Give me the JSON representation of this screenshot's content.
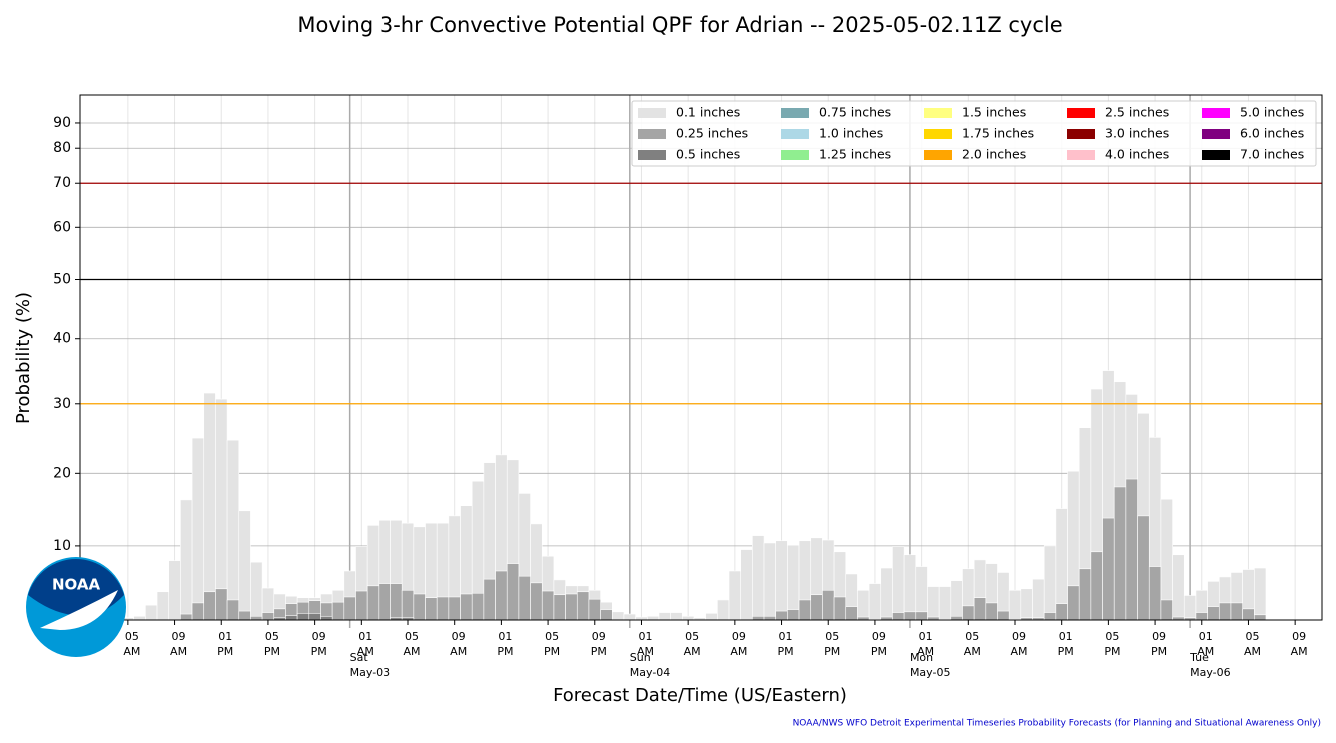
{
  "chart_data": {
    "type": "bar",
    "title": "Moving 3-hr Convective Potential QPF for Adrian -- 2025-05-02.11Z cycle",
    "xlabel": "Forecast Date/Time (US/Eastern)",
    "ylabel": "Probability (%)",
    "footer": "NOAA/NWS WFO Detroit Experimental Timeseries Probability Forecasts (for Planning and Situational Awareness Only)",
    "logo_text": "NOAA",
    "yscale": "sine",
    "grid": true,
    "legend": "upper right",
    "xlim": [
      0.9,
      107.3
    ],
    "ylim": [
      0,
      100
    ],
    "yticks": [
      10,
      20,
      30,
      40,
      50,
      60,
      70,
      80,
      90
    ],
    "xticks": [
      {
        "value": 5,
        "label": "05\nAM"
      },
      {
        "value": 9,
        "label": "09\nAM"
      },
      {
        "value": 13,
        "label": "01\nPM"
      },
      {
        "value": 17,
        "label": "05\nPM"
      },
      {
        "value": 21,
        "label": "09\nPM"
      },
      {
        "value": 25,
        "label": "01\nAM"
      },
      {
        "value": 29,
        "label": "05\nAM"
      },
      {
        "value": 33,
        "label": "09\nAM"
      },
      {
        "value": 37,
        "label": "01\nPM"
      },
      {
        "value": 41,
        "label": "05\nPM"
      },
      {
        "value": 45,
        "label": "09\nPM"
      },
      {
        "value": 49,
        "label": "01\nAM"
      },
      {
        "value": 53,
        "label": "05\nAM"
      },
      {
        "value": 57,
        "label": "09\nAM"
      },
      {
        "value": 61,
        "label": "01\nPM"
      },
      {
        "value": 65,
        "label": "05\nPM"
      },
      {
        "value": 69,
        "label": "09\nPM"
      },
      {
        "value": 73,
        "label": "01\nAM"
      },
      {
        "value": 77,
        "label": "05\nAM"
      },
      {
        "value": 81,
        "label": "09\nAM"
      },
      {
        "value": 85,
        "label": "01\nPM"
      },
      {
        "value": 89,
        "label": "05\nPM"
      },
      {
        "value": 93,
        "label": "09\nPM"
      },
      {
        "value": 97,
        "label": "01\nAM"
      },
      {
        "value": 101,
        "label": "05\nAM"
      },
      {
        "value": 105,
        "label": "09\nAM"
      }
    ],
    "day_labels": [
      {
        "value": 24,
        "label": "Sat\nMay-03"
      },
      {
        "value": 48,
        "label": "Sun\nMay-04"
      },
      {
        "value": 72,
        "label": "Mon\nMay-05"
      },
      {
        "value": 96,
        "label": "Tue\nMay-06"
      }
    ],
    "hlines": [
      {
        "value": 70,
        "color": "#a00000"
      },
      {
        "value": 50,
        "color": "#000000"
      },
      {
        "value": 30,
        "color": "#ffa500"
      }
    ],
    "x": [
      5,
      6,
      7,
      8,
      9,
      10,
      11,
      12,
      13,
      14,
      15,
      16,
      17,
      18,
      19,
      20,
      21,
      22,
      23,
      24,
      25,
      26,
      27,
      28,
      29,
      30,
      31,
      32,
      33,
      34,
      35,
      36,
      37,
      38,
      39,
      40,
      41,
      42,
      43,
      44,
      45,
      46,
      47,
      48,
      49,
      50,
      51,
      52,
      53,
      54,
      55,
      56,
      57,
      58,
      59,
      60,
      61,
      62,
      63,
      64,
      65,
      66,
      67,
      68,
      69,
      70,
      71,
      72,
      73,
      74,
      75,
      76,
      77,
      78,
      79,
      80,
      81,
      82,
      83,
      84,
      85,
      86,
      87,
      88,
      89,
      90,
      91,
      92,
      93,
      94,
      95,
      96,
      97,
      98,
      99,
      100,
      101,
      102
    ],
    "series": [
      {
        "name": "0.1 inches",
        "color": "#e3e3e3",
        "values": [
          0.3,
          0.5,
          2,
          3.8,
          8,
          16.3,
          25,
          31.6,
          30.7,
          24.7,
          14.8,
          7.8,
          4.3,
          3.5,
          3.2,
          3,
          3,
          3.5,
          4,
          6.6,
          9.9,
          12.8,
          13.5,
          13.5,
          13.1,
          12.6,
          13.1,
          13.1,
          14.1,
          15.5,
          18.9,
          21.5,
          22.6,
          21.9,
          17.2,
          13,
          8.6,
          5.4,
          4.6,
          4.6,
          4,
          2.4,
          1.1,
          0.8,
          0.4,
          0.5,
          1,
          1,
          0.5,
          0.3,
          0.9,
          2.7,
          6.6,
          9.5,
          11.4,
          10.4,
          10.7,
          10.1,
          10.7,
          11.1,
          10.8,
          9.2,
          6.2,
          4,
          4.9,
          7,
          9.9,
          8.8,
          7.2,
          4.5,
          4.5,
          5.3,
          6.9,
          8.1,
          7.6,
          6.4,
          4,
          4.2,
          5.5,
          10,
          15.1,
          20.3,
          26.5,
          32.2,
          35,
          33.3,
          31.4,
          28.6,
          25.1,
          16.4,
          8.8,
          3.3,
          4,
          5.2,
          5.8,
          6.4,
          6.8,
          7
        ]
      },
      {
        "name": "0.25 inches",
        "color": "#a5a5a5",
        "values": [
          0,
          0,
          0,
          0,
          0,
          0.8,
          2.3,
          3.8,
          4.2,
          2.7,
          1.2,
          0.5,
          1,
          1.5,
          2.2,
          2.4,
          2.6,
          2.3,
          2.4,
          3.1,
          3.9,
          4.6,
          4.9,
          4.9,
          4,
          3.5,
          3,
          3.1,
          3.1,
          3.5,
          3.6,
          5.5,
          6.6,
          7.6,
          5.9,
          5,
          3.9,
          3.4,
          3.5,
          3.8,
          2.8,
          1.4,
          0,
          0,
          0,
          0,
          0,
          0,
          0,
          0,
          0,
          0,
          0,
          0,
          0.5,
          0.5,
          1.2,
          1.4,
          2.7,
          3.4,
          4,
          3.1,
          1.8,
          0.4,
          0.1,
          0.4,
          1,
          1.1,
          1.1,
          0.4,
          0.1,
          0.5,
          1.9,
          3,
          2.3,
          1.2,
          0.1,
          0.3,
          0.3,
          1,
          2.2,
          4.6,
          6.9,
          9.2,
          13.8,
          18.1,
          19.2,
          14.1,
          7.2,
          2.7,
          0.4,
          0.3,
          1,
          1.8,
          2.3,
          2.3,
          1.5,
          0.7
        ]
      },
      {
        "name": "0.5 inches",
        "color": "#808080",
        "x": [
          18,
          19,
          20,
          21,
          22,
          28,
          29
        ],
        "values": [
          0.3,
          0.6,
          0.9,
          0.9,
          0.5,
          0.3,
          0.3
        ]
      },
      {
        "name": "0.75 inches",
        "color": "#79a9b0"
      },
      {
        "name": "1.0 inches",
        "color": "#add8e6"
      },
      {
        "name": "1.25 inches",
        "color": "#90ee90"
      },
      {
        "name": "1.5 inches",
        "color": "#ffff80"
      },
      {
        "name": "1.75 inches",
        "color": "#ffd700"
      },
      {
        "name": "2.0 inches",
        "color": "#ffa500"
      },
      {
        "name": "2.5 inches",
        "color": "#ff0000"
      },
      {
        "name": "3.0 inches",
        "color": "#8b0000"
      },
      {
        "name": "4.0 inches",
        "color": "#ffc0cb"
      },
      {
        "name": "5.0 inches",
        "color": "#ff00ff"
      },
      {
        "name": "6.0 inches",
        "color": "#800080"
      },
      {
        "name": "7.0 inches",
        "color": "#000000"
      }
    ]
  }
}
